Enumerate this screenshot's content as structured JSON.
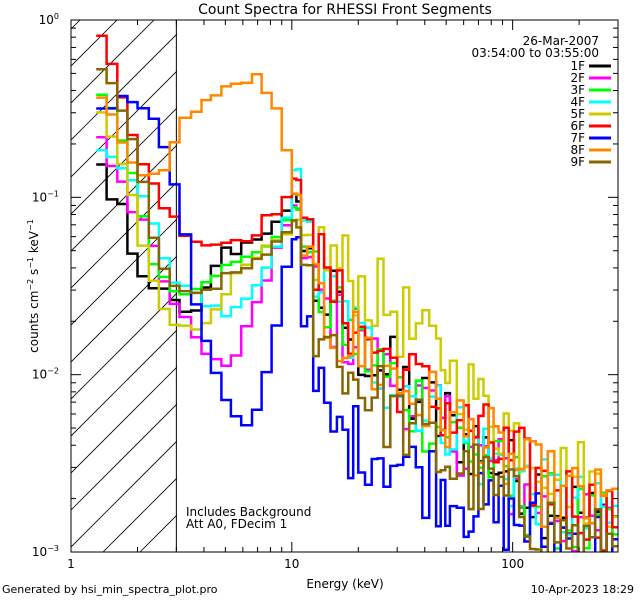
{
  "chart_data": {
    "type": "line",
    "title": "Count Spectra for RHESSI Front Segments",
    "xlabel": "Energy (keV)",
    "ylabel_parts": {
      "base": "counts cm",
      "exp1": "−2",
      "mid": " s",
      "exp2": "−1",
      "mid2": " keV",
      "exp3": "−1"
    },
    "x_scale": "log",
    "y_scale": "log",
    "xlim": [
      1,
      300
    ],
    "ylim": [
      0.001,
      1
    ],
    "x_ticks": [
      {
        "value": 1,
        "label": "1"
      },
      {
        "value": 10,
        "label": "10"
      },
      {
        "value": 100,
        "label": "100"
      }
    ],
    "y_ticks": [
      {
        "value": 0.001,
        "base": "10",
        "exp": "−3"
      },
      {
        "value": 0.01,
        "base": "10",
        "exp": "−2"
      },
      {
        "value": 0.1,
        "base": "10",
        "exp": "−1"
      },
      {
        "value": 1,
        "base": "10",
        "exp": "0"
      }
    ],
    "date": "26-Mar-2007",
    "time_range": "03:54:00 to 03:55:00",
    "annotations": [
      "Includes Background",
      "Att A0, FDecim 1"
    ],
    "excluded_region_below_keV": 3,
    "legend_position": "top-right",
    "series": [
      {
        "name": "1F",
        "color": "#000000",
        "values": [
          0.15,
          0.1,
          0.09,
          0.045,
          0.035,
          0.03,
          0.032,
          0.025,
          0.022,
          0.022,
          0.03,
          0.042,
          0.05,
          0.05,
          0.055,
          0.06,
          0.065,
          0.07,
          0.08,
          0.1,
          0.05,
          0.03,
          0.025,
          0.02,
          0.017,
          0.014,
          0.012,
          0.01,
          0.0085,
          0.0075,
          0.0065,
          0.0055,
          0.0048,
          0.0042,
          0.0036,
          0.0031,
          0.0027,
          0.0023,
          0.002,
          0.0017,
          0.0015
        ]
      },
      {
        "name": "2F",
        "color": "#ff00ff",
        "values": [
          0.22,
          0.15,
          0.12,
          0.085,
          0.075,
          0.05,
          0.035,
          0.025,
          0.02,
          0.016,
          0.014,
          0.012,
          0.011,
          0.013,
          0.018,
          0.025,
          0.035,
          0.05,
          0.065,
          0.09,
          0.045,
          0.028,
          0.022,
          0.018,
          0.015,
          0.013,
          0.011,
          0.0095,
          0.0082,
          0.007,
          0.006,
          0.0052,
          0.0045,
          0.0038,
          0.0033,
          0.0028,
          0.0024,
          0.002,
          0.0017,
          0.0015,
          0.0013
        ]
      },
      {
        "name": "3F",
        "color": "#00ff00",
        "values": [
          0.38,
          0.32,
          0.22,
          0.13,
          0.08,
          0.045,
          0.035,
          0.03,
          0.03,
          0.032,
          0.035,
          0.038,
          0.04,
          0.042,
          0.045,
          0.05,
          0.055,
          0.06,
          0.07,
          0.09,
          0.05,
          0.03,
          0.024,
          0.019,
          0.016,
          0.013,
          0.011,
          0.0095,
          0.008,
          0.007,
          0.006,
          0.0051,
          0.0044,
          0.0038,
          0.0032,
          0.0027,
          0.0023,
          0.002,
          0.0017,
          0.0015,
          0.0013
        ]
      },
      {
        "name": "4F",
        "color": "#00ffff",
        "values": [
          0.18,
          0.16,
          0.15,
          0.12,
          0.1,
          0.07,
          0.045,
          0.035,
          0.03,
          0.028,
          0.026,
          0.024,
          0.022,
          0.023,
          0.026,
          0.03,
          0.04,
          0.05,
          0.08,
          0.15,
          0.07,
          0.035,
          0.027,
          0.021,
          0.017,
          0.014,
          0.012,
          0.01,
          0.0088,
          0.0076,
          0.0066,
          0.0057,
          0.0049,
          0.0042,
          0.0036,
          0.0031,
          0.0027,
          0.0023,
          0.002,
          0.0017,
          0.0015
        ]
      },
      {
        "name": "5F",
        "color": "#cccc00",
        "values": [
          0.3,
          0.22,
          0.15,
          0.1,
          0.055,
          0.035,
          0.025,
          0.02,
          0.018,
          0.018,
          0.02,
          0.025,
          0.03,
          0.035,
          0.04,
          0.045,
          0.05,
          0.055,
          0.06,
          0.07,
          0.06,
          0.05,
          0.045,
          0.04,
          0.035,
          0.03,
          0.027,
          0.024,
          0.02,
          0.017,
          0.014,
          0.012,
          0.0095,
          0.008,
          0.0065,
          0.0055,
          0.0045,
          0.0038,
          0.0032,
          0.0027,
          0.0023
        ]
      },
      {
        "name": "6F",
        "color": "#ff0000",
        "values": [
          0.85,
          0.55,
          0.35,
          0.22,
          0.16,
          0.12,
          0.09,
          0.075,
          0.065,
          0.058,
          0.055,
          0.055,
          0.056,
          0.058,
          0.06,
          0.065,
          0.075,
          0.085,
          0.1,
          0.12,
          0.08,
          0.04,
          0.03,
          0.024,
          0.02,
          0.016,
          0.014,
          0.012,
          0.01,
          0.0088,
          0.0076,
          0.0066,
          0.0057,
          0.0049,
          0.0042,
          0.0036,
          0.0031,
          0.0027,
          0.0023,
          0.002,
          0.0017
        ]
      },
      {
        "name": "7F",
        "color": "#0000ff",
        "values": [
          0.3,
          0.33,
          0.35,
          0.35,
          0.33,
          0.28,
          0.2,
          0.12,
          0.06,
          0.025,
          0.015,
          0.01,
          0.007,
          0.0055,
          0.005,
          0.0065,
          0.01,
          0.02,
          0.04,
          0.06,
          0.02,
          0.008,
          0.005,
          0.0045,
          0.0042,
          0.004,
          0.0038,
          0.0035,
          0.0032,
          0.0029,
          0.0026,
          0.0023,
          0.0021,
          0.0019,
          0.0017,
          0.0016,
          0.0015,
          0.0014,
          0.0013,
          0.0012,
          0.0011
        ]
      },
      {
        "name": "8F",
        "color": "#ff8800",
        "values": [
          0.35,
          0.28,
          0.2,
          0.15,
          0.14,
          0.13,
          0.15,
          0.2,
          0.27,
          0.32,
          0.35,
          0.38,
          0.4,
          0.43,
          0.46,
          0.47,
          0.4,
          0.3,
          0.18,
          0.1,
          0.05,
          0.025,
          0.02,
          0.017,
          0.015,
          0.013,
          0.011,
          0.0098,
          0.0086,
          0.0075,
          0.0066,
          0.0058,
          0.0051,
          0.0045,
          0.0039,
          0.0034,
          0.003,
          0.0026,
          0.0023,
          0.002,
          0.0018
        ]
      },
      {
        "name": "9F",
        "color": "#886600",
        "values": [
          0.55,
          0.45,
          0.3,
          0.2,
          0.12,
          0.06,
          0.04,
          0.03,
          0.028,
          0.028,
          0.03,
          0.032,
          0.035,
          0.037,
          0.04,
          0.045,
          0.05,
          0.055,
          0.06,
          0.07,
          0.04,
          0.02,
          0.015,
          0.012,
          0.01,
          0.0085,
          0.0072,
          0.0062,
          0.0053,
          0.0046,
          0.004,
          0.0034,
          0.003,
          0.0026,
          0.0023,
          0.002,
          0.0018,
          0.0016,
          0.0014,
          0.0012,
          0.0011
        ]
      }
    ],
    "x_edges": [
      1.3,
      1.45,
      1.62,
      1.8,
      2.0,
      2.25,
      2.5,
      2.8,
      3.1,
      3.5,
      3.9,
      4.3,
      4.8,
      5.3,
      5.9,
      6.6,
      7.3,
      8.1,
      9.0,
      10.0,
      11.0,
      12.5,
      14.0,
      16.0,
      18.0,
      20.0,
      23.0,
      26.0,
      30.0,
      34.0,
      39.0,
      45.0,
      52.0,
      60.0,
      70.0,
      82.0,
      96.0,
      113.0,
      135.0,
      165.0,
      210.0,
      300.0
    ]
  },
  "footer": {
    "left": "Generated by hsi_min_spectra_plot.pro",
    "right": "10-Apr-2023 18:29"
  }
}
